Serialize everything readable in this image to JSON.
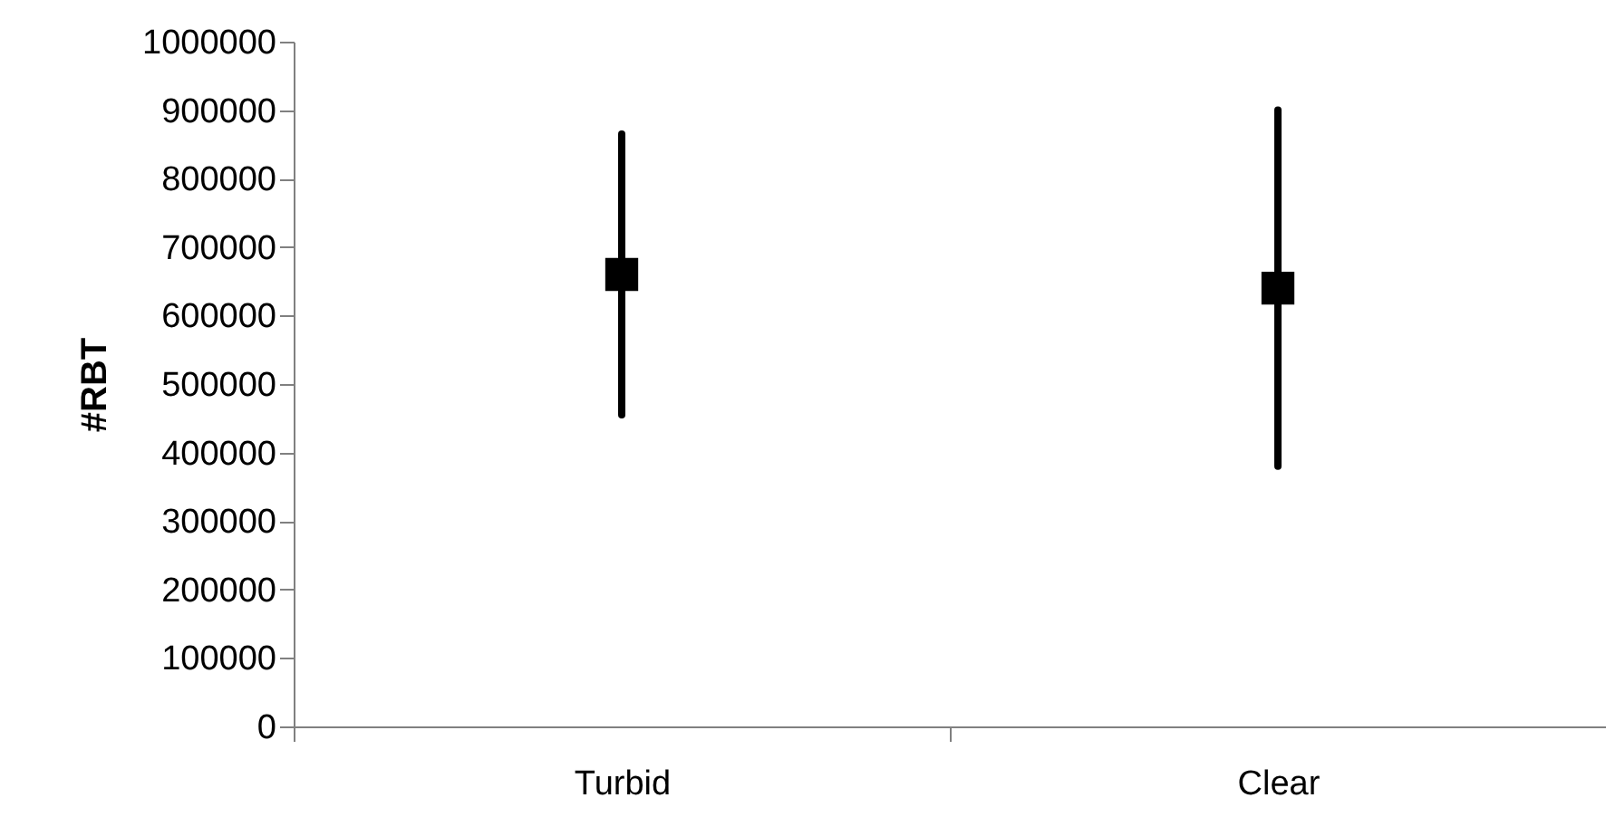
{
  "chart_data": {
    "type": "scatter",
    "ylabel": "#RBT",
    "categories": [
      "Turbid",
      "Clear"
    ],
    "series": [
      {
        "color": "#000000",
        "values": [
          660000,
          640000
        ],
        "errors": [
          205000,
          260000
        ]
      }
    ],
    "ylim": [
      0,
      1000000
    ],
    "yticks": [
      0,
      100000,
      200000,
      300000,
      400000,
      500000,
      600000,
      700000,
      800000,
      900000,
      1000000
    ],
    "marker": "square",
    "grid": false
  }
}
